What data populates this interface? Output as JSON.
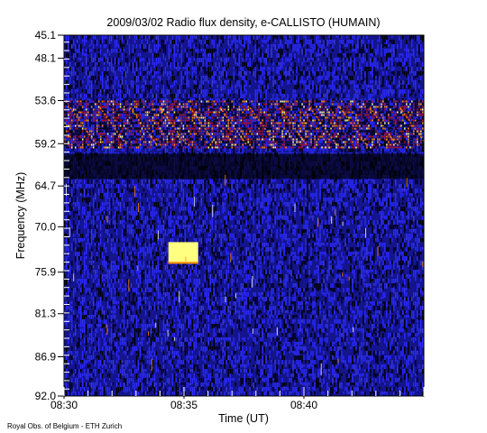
{
  "chart_data": {
    "type": "heatmap",
    "title": "2009/03/02  Radio flux density, e-CALLISTO (HUMAIN)",
    "xlabel": "Time (UT)",
    "ylabel": "Frequency (MHz)",
    "x_unit": "UT",
    "y_unit": "MHz",
    "xlim": [
      "08:30",
      "08:45"
    ],
    "ylim": [
      92.0,
      45.1
    ],
    "y_inverted": true,
    "x_ticks": [
      "08:30",
      "08:35",
      "08:40"
    ],
    "y_ticks": [
      "45.1",
      "48.1",
      "53.6",
      "59.2",
      "64.7",
      "70.0",
      "75.9",
      "81.3",
      "86.9",
      "92.0"
    ],
    "colormap": [
      "#000000",
      "#14148c",
      "#2a2aff",
      "#b4141e",
      "#ff8c00",
      "#ffff80"
    ],
    "features": [
      {
        "kind": "horizontal-band",
        "freq_mhz": [
          53.6,
          59.8
        ],
        "time": [
          "08:30",
          "08:45"
        ],
        "intensity": "high"
      },
      {
        "kind": "drifting-bursts",
        "freq_mhz": [
          54.5,
          59.4
        ],
        "time": [
          "08:30",
          "08:45"
        ],
        "count": 12
      },
      {
        "kind": "dark-band",
        "freq_mhz": [
          60.5,
          63.8
        ],
        "time": [
          "08:30",
          "08:45"
        ]
      },
      {
        "kind": "spike",
        "time": "08:34:57",
        "freq_mhz": [
          72.0,
          74.8
        ],
        "intensity": "saturated"
      }
    ]
  },
  "credit": "Royal Obs. of Belgium - ETH Zurich",
  "colors": {
    "background": "#ffffff",
    "frame": "#000000"
  }
}
